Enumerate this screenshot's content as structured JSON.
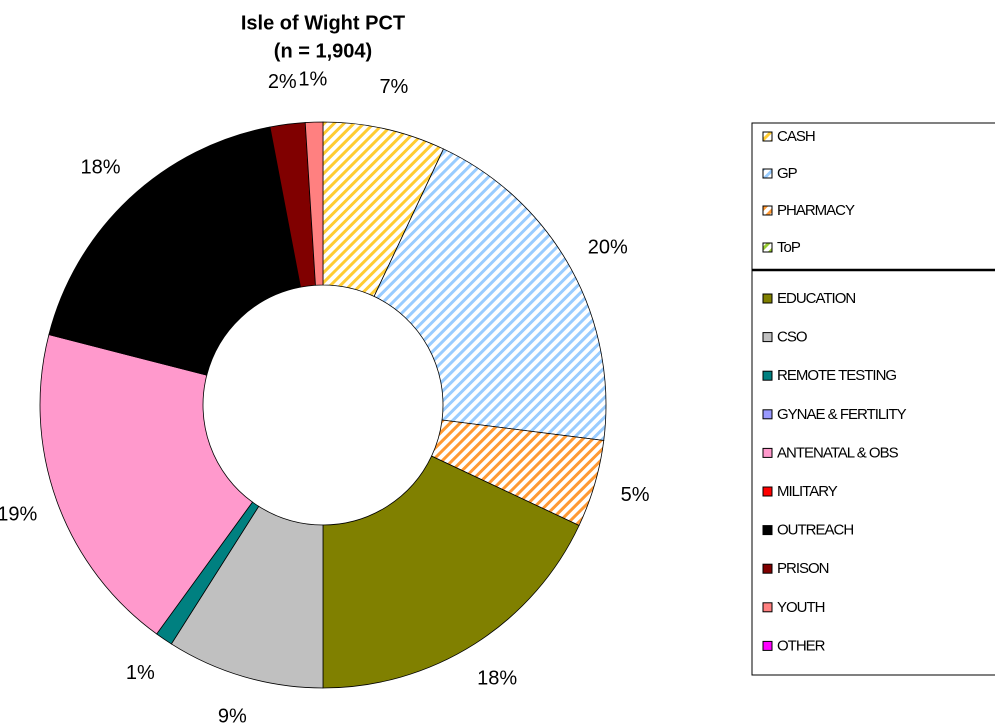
{
  "chart_data": {
    "type": "donut",
    "title": "Isle of Wight PCT",
    "subtitle": "(n = 1,904)",
    "categories": [
      "CASH",
      "GP",
      "PHARMACY",
      "ToP",
      "EDUCATION",
      "CSO",
      "REMOTE TESTING",
      "GYNAE & FERTILITY",
      "ANTENATAL & OBS",
      "MILITARY",
      "OUTREACH",
      "PRISON",
      "YOUTH",
      "OTHER"
    ],
    "values": [
      7,
      20,
      5,
      0,
      18,
      9,
      1,
      0,
      19,
      0,
      18,
      2,
      1,
      0
    ],
    "value_labels": [
      "7%",
      "20%",
      "5%",
      null,
      "18%",
      "9%",
      "1%",
      null,
      "19%",
      null,
      "18%",
      "2%",
      "1%",
      null
    ],
    "colors": [
      "#ffcc33",
      "#99ccff",
      "#ff9933",
      "#99cc33",
      "#808000",
      "#c0c0c0",
      "#008080",
      "#9999ff",
      "#ff99cc",
      "#ff0000",
      "#000000",
      "#800000",
      "#ff8080",
      "#ff00ff"
    ],
    "hatched": [
      true,
      true,
      true,
      true,
      false,
      false,
      false,
      false,
      false,
      false,
      false,
      false,
      false,
      false
    ],
    "legend": "right"
  }
}
